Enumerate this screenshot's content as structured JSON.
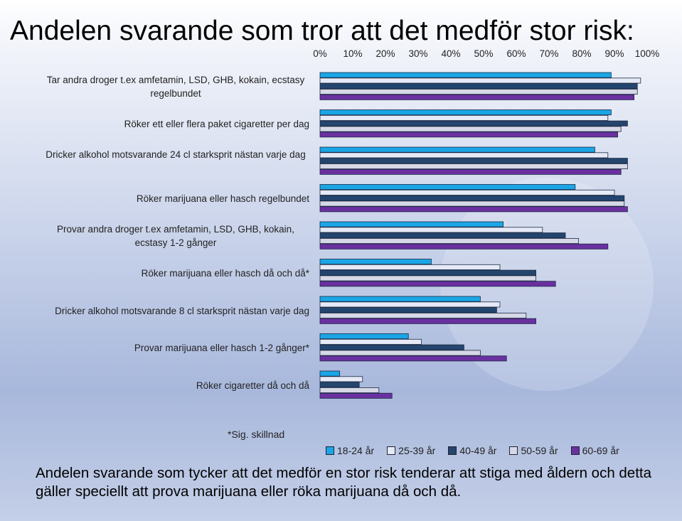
{
  "title": "Andelen svarande som tror att det medför stor risk:",
  "chart_data": {
    "type": "bar",
    "orientation": "horizontal",
    "xlim": [
      0,
      100
    ],
    "tick_labels": [
      "0%",
      "10%",
      "20%",
      "30%",
      "40%",
      "50%",
      "60%",
      "70%",
      "80%",
      "90%",
      "100%"
    ],
    "categories": [
      "Tar andra droger t.ex amfetamin, LSD, GHB, kokain, ecstasy regelbundet",
      "Röker ett eller flera paket cigaretter per dag",
      "Dricker alkohol motsvarande 24 cl starksprit nästan varje dag",
      "Röker marijuana eller hasch regelbundet",
      "Provar andra droger t.ex amfetamin, LSD, GHB, kokain, ecstasy 1-2 gånger",
      "Röker marijuana eller hasch då och då*",
      "Dricker alkohol motsvarande 8 cl starksprit nästan varje dag",
      "Provar marijuana eller hasch 1-2 gånger*",
      "Röker cigaretter då och då"
    ],
    "series": [
      {
        "name": "18-24 år",
        "color": "#1aa6e6",
        "values": [
          89,
          89,
          84,
          78,
          56,
          34,
          49,
          27,
          6
        ]
      },
      {
        "name": "25-39 år",
        "color": "#e6eaf6",
        "values": [
          98,
          88,
          88,
          90,
          68,
          55,
          55,
          31,
          13
        ]
      },
      {
        "name": "40-49 år",
        "color": "#24456e",
        "values": [
          97,
          94,
          94,
          93,
          75,
          66,
          54,
          44,
          12
        ]
      },
      {
        "name": "50-59 år",
        "color": "#d6d8e6",
        "values": [
          97,
          92,
          94,
          93,
          79,
          66,
          63,
          49,
          18
        ]
      },
      {
        "name": "60-69 år",
        "color": "#6a30a0",
        "values": [
          96,
          91,
          92,
          94,
          88,
          72,
          66,
          57,
          22
        ]
      }
    ]
  },
  "sig_note": "*Sig. skillnad",
  "footer": "Andelen svarande som tycker att det medför en stor risk tenderar att stiga med åldern och detta gäller speciellt att prova marijuana eller röka marijuana då och då."
}
